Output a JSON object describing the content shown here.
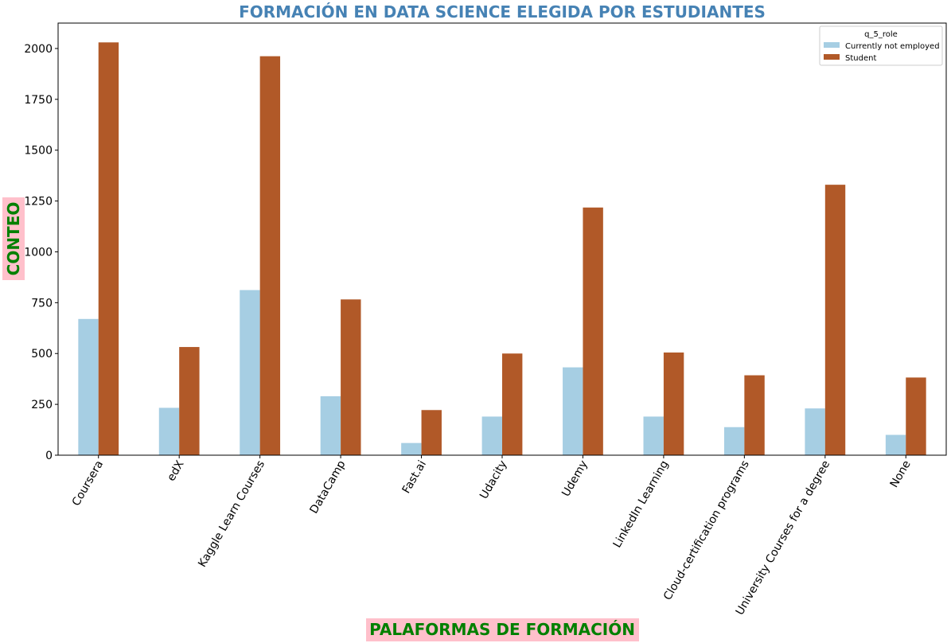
{
  "chart_data": {
    "type": "bar",
    "title": "FORMACIÓN EN DATA SCIENCE ELEGIDA POR ESTUDIANTES",
    "xlabel": "PALAFORMAS DE FORMACIÓN",
    "ylabel": "CONTEO",
    "categories": [
      "Coursera",
      "edX",
      "Kaggle Learn Courses",
      "DataCamp",
      "Fast.ai",
      "Udacity",
      "Udemy",
      "LinkedIn Learning",
      "Cloud-certification programs",
      "University Courses for a degree",
      "None"
    ],
    "series": [
      {
        "name": "Currently not employed",
        "color": "#a6cee3",
        "values": [
          670,
          233,
          812,
          290,
          60,
          190,
          432,
          190,
          138,
          230,
          100
        ]
      },
      {
        "name": "Student",
        "color": "#b15928",
        "values": [
          2030,
          532,
          1962,
          766,
          222,
          500,
          1218,
          505,
          393,
          1330,
          382
        ]
      }
    ],
    "ylim": [
      0,
      2125
    ],
    "yticks": [
      0,
      250,
      500,
      750,
      1000,
      1250,
      1500,
      1750,
      2000
    ],
    "legend": {
      "title": "q_5_role",
      "placement": "top-right"
    },
    "grid": false,
    "colors": {
      "title": "#4682b4",
      "label_text": "#008000",
      "label_background": "#ffc0cb"
    }
  }
}
